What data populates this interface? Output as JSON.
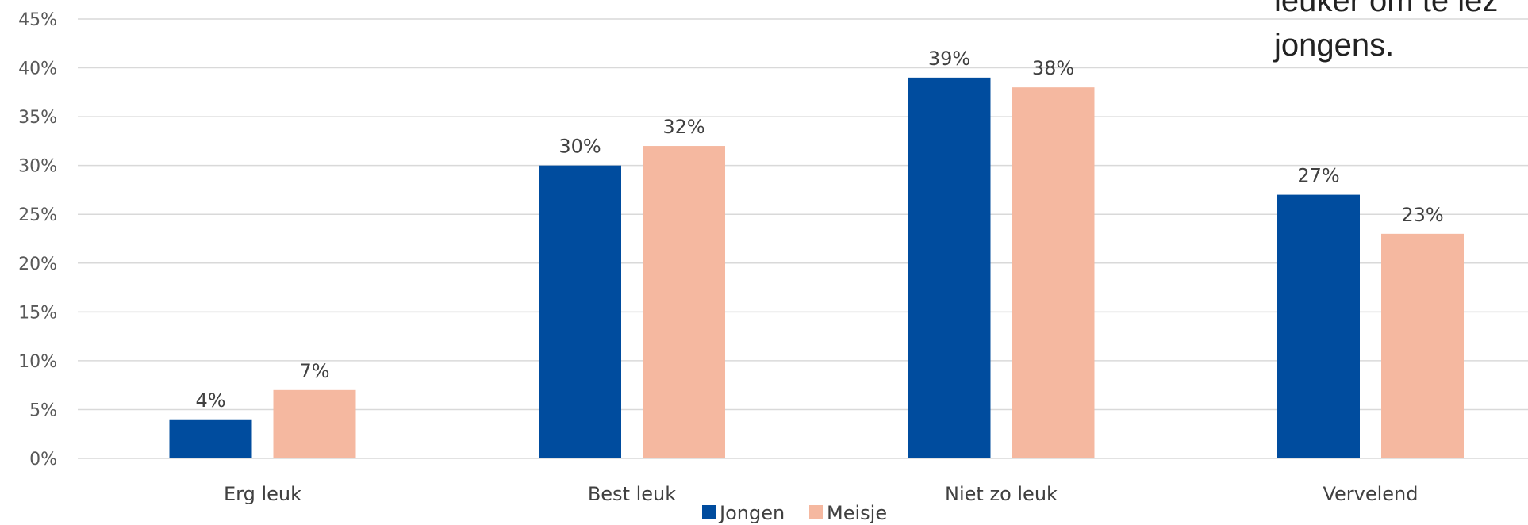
{
  "chart_data": {
    "type": "bar",
    "categories": [
      "Erg leuk",
      "Best leuk",
      "Niet zo leuk",
      "Vervelend"
    ],
    "series": [
      {
        "name": "Jongen",
        "values": [
          4,
          30,
          39,
          27
        ],
        "color": "#004c9e"
      },
      {
        "name": "Meisje",
        "values": [
          7,
          32,
          38,
          23
        ],
        "color": "#f5b8a0"
      }
    ],
    "data_labels": [
      [
        "4%",
        "30%",
        "39%",
        "27%"
      ],
      [
        "7%",
        "32%",
        "38%",
        "23%"
      ]
    ],
    "yticks": [
      "0%",
      "5%",
      "10%",
      "15%",
      "20%",
      "25%",
      "30%",
      "35%",
      "40%",
      "45%"
    ],
    "ylim": [
      0,
      45
    ],
    "grid": true,
    "legend_position": "bottom",
    "annotation": [
      "leuker om te lez",
      "jongens."
    ]
  }
}
